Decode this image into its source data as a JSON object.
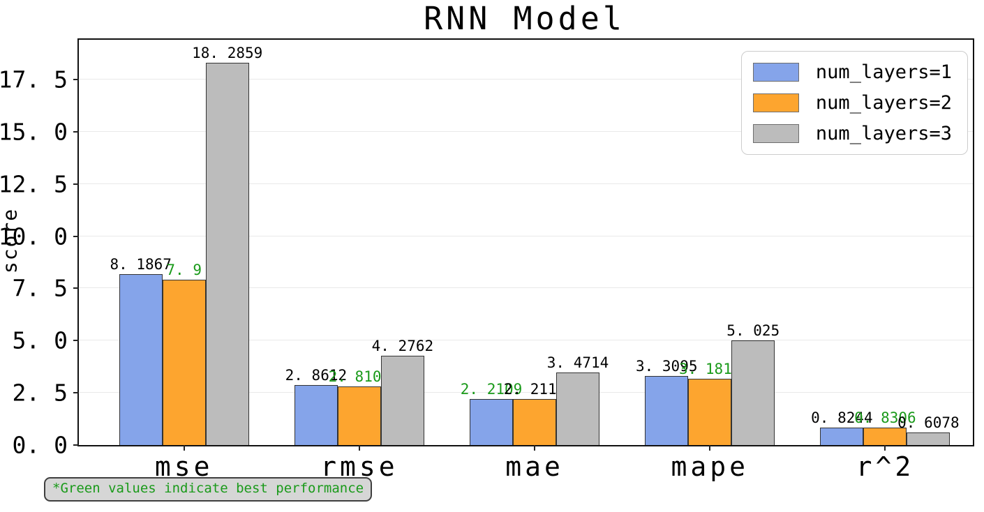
{
  "chart_data": {
    "type": "bar",
    "title": "RNN Model",
    "ylabel": "score",
    "xlabel": "",
    "categories": [
      "mse",
      "rmse",
      "mae",
      "mape",
      "r^2"
    ],
    "series": [
      {
        "name": "num_layers=1",
        "color": "#85A4EA",
        "values": [
          8.1867,
          2.8612,
          2.2109,
          3.3095,
          0.8244
        ],
        "display_labels": [
          "8. 1867",
          "2. 8612",
          "2. 2109",
          "3. 3095",
          "0. 8244"
        ],
        "best": [
          false,
          false,
          true,
          false,
          false
        ]
      },
      {
        "name": "num_layers=2",
        "color": "#FDA52F",
        "values": [
          7.9,
          2.8107,
          2.2117,
          3.1816,
          0.8306
        ],
        "display_labels": [
          "7. 9",
          "2. 8107",
          "2. 2117",
          "3. 1816",
          "0. 8306"
        ],
        "best": [
          true,
          true,
          false,
          true,
          true
        ]
      },
      {
        "name": "num_layers=3",
        "color": "#BCBCBC",
        "values": [
          18.2859,
          4.2762,
          3.4714,
          5.025,
          0.6078
        ],
        "display_labels": [
          "18. 2859",
          "4. 2762",
          "3. 4714",
          "5. 025",
          "0. 6078"
        ],
        "best": [
          false,
          false,
          false,
          false,
          false
        ]
      }
    ],
    "yticks": [
      {
        "value": 0,
        "label": "0. 0"
      },
      {
        "value": 2.5,
        "label": "2. 5"
      },
      {
        "value": 5,
        "label": "5. 0"
      },
      {
        "value": 7.5,
        "label": "7. 5"
      },
      {
        "value": 10,
        "label": "10. 0"
      },
      {
        "value": 12.5,
        "label": "12. 5"
      },
      {
        "value": 15,
        "label": "15. 0"
      },
      {
        "value": 17.5,
        "label": "17. 5"
      }
    ],
    "ylim": [
      0,
      19.4
    ],
    "grid": "horizontal",
    "grid_color": "#e9e9e9",
    "legend_position": "upper right",
    "bar_edge_color": "#333333",
    "best_value_color": "#1A9A1A",
    "value_label_color": "#000000"
  },
  "footer": {
    "note": "*Green values indicate best performance"
  }
}
